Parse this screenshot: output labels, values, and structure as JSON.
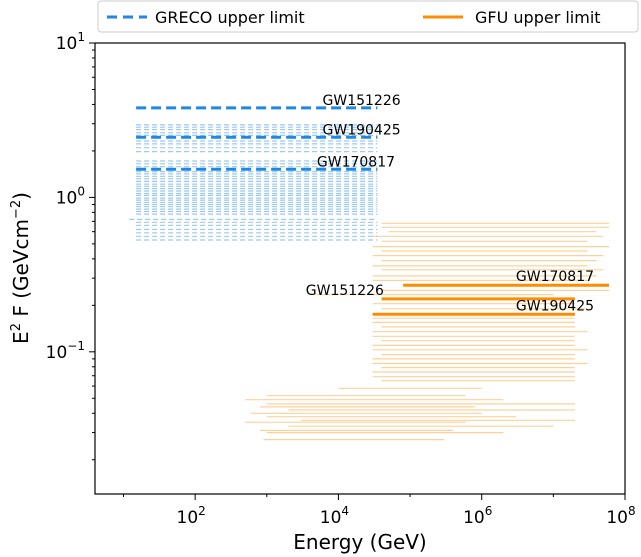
{
  "chart_data": {
    "type": "line",
    "title": "",
    "xlabel": "Energy (GeV)",
    "ylabel_base": "E",
    "ylabel_sup": "2",
    "ylabel_mid": " F (GeVcm",
    "ylabel_sup2": "−2",
    "ylabel_end": ")",
    "xscale": "log",
    "yscale": "log",
    "xlim": [
      4,
      100000000
    ],
    "ylim": [
      0.012,
      10
    ],
    "grid": false,
    "legend_position": "top",
    "x_ticks": [
      {
        "value": 100,
        "base": "10",
        "exp": "2"
      },
      {
        "value": 10000,
        "base": "10",
        "exp": "4"
      },
      {
        "value": 1000000,
        "base": "10",
        "exp": "6"
      },
      {
        "value": 100000000,
        "base": "10",
        "exp": "8"
      }
    ],
    "y_ticks": [
      {
        "value": 0.1,
        "base": "10",
        "exp": "−1"
      },
      {
        "value": 1,
        "base": "10",
        "exp": "0"
      },
      {
        "value": 10,
        "base": "10",
        "exp": "1"
      }
    ],
    "colors": {
      "greco": "#1e88e5",
      "gfu": "#ff8c00"
    },
    "series": [
      {
        "name": "GRECO upper limit",
        "style": "dashed",
        "highlighted": [
          {
            "x": [
              15,
              35000
            ],
            "y": 3.8
          },
          {
            "x": [
              15,
              35000
            ],
            "y": 2.45
          },
          {
            "x": [
              15,
              35000
            ],
            "y": 1.52
          }
        ],
        "background": [
          {
            "x": [
              15,
              35000
            ],
            "y": 2.95
          },
          {
            "x": [
              15,
              35000
            ],
            "y": 2.85
          },
          {
            "x": [
              15,
              35000
            ],
            "y": 2.75
          },
          {
            "x": [
              15,
              35000
            ],
            "y": 2.62
          },
          {
            "x": [
              15,
              35000
            ],
            "y": 2.52
          },
          {
            "x": [
              15,
              35000
            ],
            "y": 2.32
          },
          {
            "x": [
              15,
              35000
            ],
            "y": 2.22
          },
          {
            "x": [
              15,
              35000
            ],
            "y": 2.1
          },
          {
            "x": [
              15,
              35000
            ],
            "y": 1.98
          },
          {
            "x": [
              15,
              35000
            ],
            "y": 1.72
          },
          {
            "x": [
              15,
              35000
            ],
            "y": 1.65
          },
          {
            "x": [
              15,
              35000
            ],
            "y": 1.58
          },
          {
            "x": [
              15,
              35000
            ],
            "y": 1.47
          },
          {
            "x": [
              15,
              35000
            ],
            "y": 1.42
          },
          {
            "x": [
              15,
              35000
            ],
            "y": 1.37
          },
          {
            "x": [
              15,
              35000
            ],
            "y": 1.32
          },
          {
            "x": [
              15,
              35000
            ],
            "y": 1.27
          },
          {
            "x": [
              15,
              35000
            ],
            "y": 1.22
          },
          {
            "x": [
              15,
              35000
            ],
            "y": 1.18
          },
          {
            "x": [
              15,
              35000
            ],
            "y": 1.14
          },
          {
            "x": [
              15,
              35000
            ],
            "y": 1.1
          },
          {
            "x": [
              15,
              35000
            ],
            "y": 1.06
          },
          {
            "x": [
              15,
              35000
            ],
            "y": 1.03
          },
          {
            "x": [
              15,
              35000
            ],
            "y": 0.99
          },
          {
            "x": [
              15,
              35000
            ],
            "y": 0.96
          },
          {
            "x": [
              15,
              35000
            ],
            "y": 0.93
          },
          {
            "x": [
              15,
              35000
            ],
            "y": 0.9
          },
          {
            "x": [
              15,
              35000
            ],
            "y": 0.87
          },
          {
            "x": [
              15,
              35000
            ],
            "y": 0.84
          },
          {
            "x": [
              15,
              35000
            ],
            "y": 0.81
          },
          {
            "x": [
              15,
              35000
            ],
            "y": 0.78
          },
          {
            "x": [
              12,
              35000
            ],
            "y": 0.72
          },
          {
            "x": [
              15,
              35000
            ],
            "y": 0.69
          },
          {
            "x": [
              15,
              35000
            ],
            "y": 0.66
          },
          {
            "x": [
              15,
              35000
            ],
            "y": 0.62
          },
          {
            "x": [
              15,
              35000
            ],
            "y": 0.59
          },
          {
            "x": [
              15,
              35000
            ],
            "y": 0.56
          },
          {
            "x": [
              15,
              35000
            ],
            "y": 0.53
          }
        ]
      },
      {
        "name": "GFU upper limit",
        "style": "solid",
        "highlighted": [
          {
            "x": [
              80000,
              60000000
            ],
            "y": 0.27
          },
          {
            "x": [
              40000,
              20000000
            ],
            "y": 0.22
          },
          {
            "x": [
              30000,
              20000000
            ],
            "y": 0.175
          }
        ],
        "background": [
          {
            "x": [
              40000,
              60000000
            ],
            "y": 0.68
          },
          {
            "x": [
              40000,
              60000000
            ],
            "y": 0.64
          },
          {
            "x": [
              50000,
              40000000
            ],
            "y": 0.6
          },
          {
            "x": [
              30000,
              50000000
            ],
            "y": 0.56
          },
          {
            "x": [
              40000,
              30000000
            ],
            "y": 0.52
          },
          {
            "x": [
              30000,
              60000000
            ],
            "y": 0.48
          },
          {
            "x": [
              40000,
              30000000
            ],
            "y": 0.45
          },
          {
            "x": [
              30000,
              50000000
            ],
            "y": 0.42
          },
          {
            "x": [
              40000,
              40000000
            ],
            "y": 0.39
          },
          {
            "x": [
              30000,
              30000000
            ],
            "y": 0.36
          },
          {
            "x": [
              40000,
              50000000
            ],
            "y": 0.34
          },
          {
            "x": [
              30000,
              40000000
            ],
            "y": 0.31
          },
          {
            "x": [
              30000,
              30000000
            ],
            "y": 0.29
          },
          {
            "x": [
              40000,
              60000000
            ],
            "y": 0.25
          },
          {
            "x": [
              4000,
              10000000
            ],
            "y": 0.235
          },
          {
            "x": [
              30000,
              20000000
            ],
            "y": 0.205
          },
          {
            "x": [
              40000,
              30000000
            ],
            "y": 0.19
          },
          {
            "x": [
              30000,
              20000000
            ],
            "y": 0.165
          },
          {
            "x": [
              30000,
              20000000
            ],
            "y": 0.155
          },
          {
            "x": [
              40000,
              20000000
            ],
            "y": 0.145
          },
          {
            "x": [
              30000,
              30000000
            ],
            "y": 0.135
          },
          {
            "x": [
              30000,
              20000000
            ],
            "y": 0.126
          },
          {
            "x": [
              40000,
              20000000
            ],
            "y": 0.118
          },
          {
            "x": [
              30000,
              20000000
            ],
            "y": 0.11
          },
          {
            "x": [
              30000,
              30000000
            ],
            "y": 0.103
          },
          {
            "x": [
              40000,
              20000000
            ],
            "y": 0.096
          },
          {
            "x": [
              30000,
              20000000
            ],
            "y": 0.09
          },
          {
            "x": [
              30000,
              30000000
            ],
            "y": 0.084
          },
          {
            "x": [
              40000,
              20000000
            ],
            "y": 0.079
          },
          {
            "x": [
              30000,
              20000000
            ],
            "y": 0.074
          },
          {
            "x": [
              30000,
              20000000
            ],
            "y": 0.069
          },
          {
            "x": [
              40000,
              20000000
            ],
            "y": 0.065
          },
          {
            "x": [
              10000,
              1000000
            ],
            "y": 0.058
          },
          {
            "x": [
              1000,
              600000
            ],
            "y": 0.052
          },
          {
            "x": [
              500,
              2000000
            ],
            "y": 0.049
          },
          {
            "x": [
              1000,
              20000000
            ],
            "y": 0.046
          },
          {
            "x": [
              800,
              800000
            ],
            "y": 0.044
          },
          {
            "x": [
              2000,
              20000000
            ],
            "y": 0.042
          },
          {
            "x": [
              600,
              1000000
            ],
            "y": 0.04
          },
          {
            "x": [
              1000,
              3000000
            ],
            "y": 0.038
          },
          {
            "x": [
              3000,
              20000000
            ],
            "y": 0.036
          },
          {
            "x": [
              500,
              600000
            ],
            "y": 0.035
          },
          {
            "x": [
              2000,
              10000000
            ],
            "y": 0.033
          },
          {
            "x": [
              800,
              400000
            ],
            "y": 0.031
          },
          {
            "x": [
              1000,
              2000000
            ],
            "y": 0.03
          },
          {
            "x": [
              900,
              300000
            ],
            "y": 0.027
          }
        ]
      }
    ],
    "annotations": [
      {
        "text": "GW151226",
        "x": 6000,
        "y": 3.8,
        "series": "GRECO upper limit"
      },
      {
        "text": "GW190425",
        "x": 6000,
        "y": 2.45,
        "series": "GRECO upper limit"
      },
      {
        "text": "GW170817",
        "x": 5000,
        "y": 1.52,
        "series": "GRECO upper limit"
      },
      {
        "text": "GW170817",
        "x": 3000000,
        "y": 0.27,
        "series": "GFU upper limit"
      },
      {
        "text": "GW151226",
        "x": 3500,
        "y": 0.22,
        "series": "GFU upper limit"
      },
      {
        "text": "GW190425",
        "x": 3000000,
        "y": 0.175,
        "series": "GFU upper limit"
      }
    ]
  }
}
